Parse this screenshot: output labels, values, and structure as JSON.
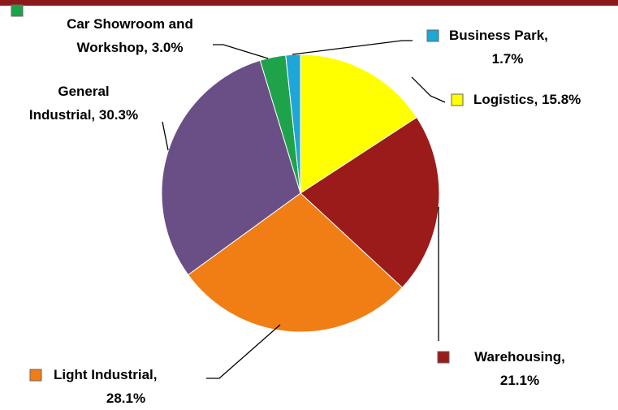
{
  "chart_data": {
    "type": "pie",
    "values": [
      15.8,
      21.1,
      28.1,
      30.3,
      3.0,
      1.7
    ],
    "value_labels": [
      "Logistics, 15.8%",
      "Warehousing,\n21.1%",
      "Light Industrial,\n28.1%",
      "General\nIndustrial, 30.3%",
      "Car Showroom and\nWorkshop, 3.0%",
      "Business Park,\n1.7%"
    ],
    "colors": [
      "#ffff00",
      "#9b1a1a",
      "#f07e14",
      "#6a4f86",
      "#1ea34a",
      "#1ea6d8"
    ]
  }
}
